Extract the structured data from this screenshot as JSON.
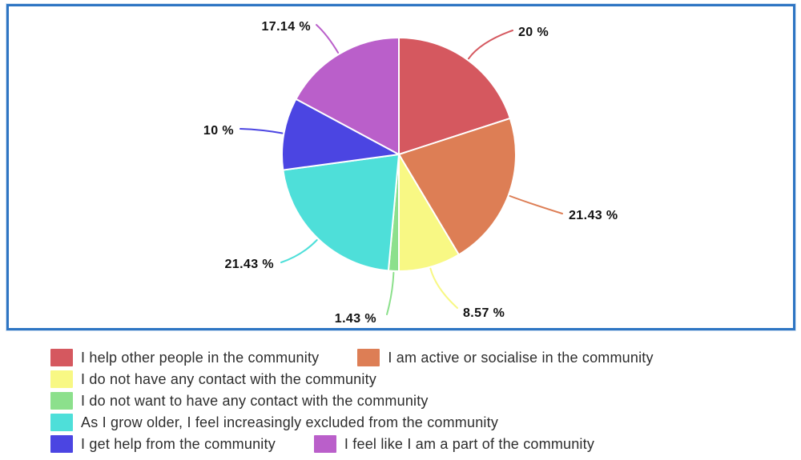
{
  "chart_box": {
    "border_color": "#2E75C3",
    "background": "#FFFFFF"
  },
  "chart_data": {
    "type": "pie",
    "title": "",
    "labels": [
      "I help other people in the community",
      "I am active or socialise in the community",
      "I do not have any contact with the community",
      "I do not want to have any contact with the community",
      "As I grow older, I feel increasingly excluded from the community",
      "I get help from the community",
      "I feel like I am a part of the community"
    ],
    "values": [
      20,
      21.43,
      8.57,
      1.43,
      21.43,
      10,
      17.14
    ],
    "percent_labels": [
      "20 %",
      "21.43 %",
      "8.57 %",
      "1.43 %",
      "21.43 %",
      "10 %",
      "17.14 %"
    ],
    "colors": [
      "#D5585F",
      "#DD7E55",
      "#F8F884",
      "#8CE08C",
      "#4EDFD9",
      "#4B45E2",
      "#BA5FCA"
    ],
    "start_angle_deg": 0,
    "direction": "clockwise",
    "legend_position": "bottom",
    "legend_rows": [
      [
        0,
        1
      ],
      [
        2
      ],
      [
        3
      ],
      [
        4
      ],
      [
        5,
        6
      ]
    ]
  }
}
